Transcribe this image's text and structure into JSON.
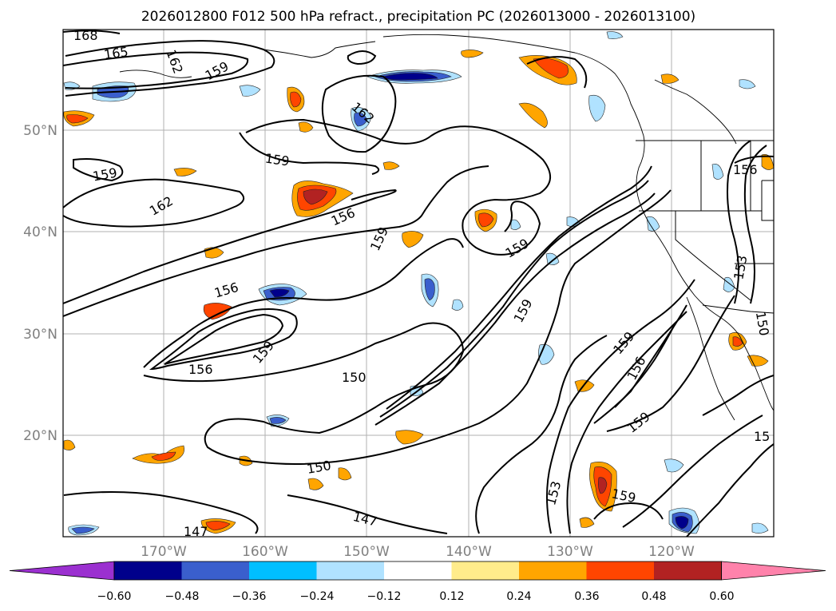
{
  "title": "2026012800 F012 500 hPa refract., precipitation PC (2026013000 - 2026013100)",
  "lat_labels": [
    "50°N",
    "40°N",
    "30°N",
    "20°N"
  ],
  "lon_labels": [
    "170°W",
    "160°W",
    "150°W",
    "140°W",
    "130°W",
    "120°W"
  ],
  "contour_labels": [
    "168",
    "165",
    "162",
    "159",
    "162",
    "159",
    "159",
    "162",
    "156",
    "159",
    "159",
    "156",
    "159",
    "156",
    "150",
    "159",
    "156",
    "159",
    "150",
    "153",
    "159",
    "147",
    "147",
    "156",
    "153",
    "150",
    "159",
    "15"
  ],
  "colorbar": {
    "ticks": [
      "−0.60",
      "−0.48",
      "−0.36",
      "−0.24",
      "−0.12",
      "0.12",
      "0.24",
      "0.36",
      "0.48",
      "0.60"
    ],
    "colors": [
      "#9b30d0",
      "#00008b",
      "#3a5fcd",
      "#00bfff",
      "#b0e2ff",
      "#ffffff",
      "#ffec8b",
      "#ffa500",
      "#ff4500",
      "#b22222",
      "#ff82ab"
    ]
  }
}
